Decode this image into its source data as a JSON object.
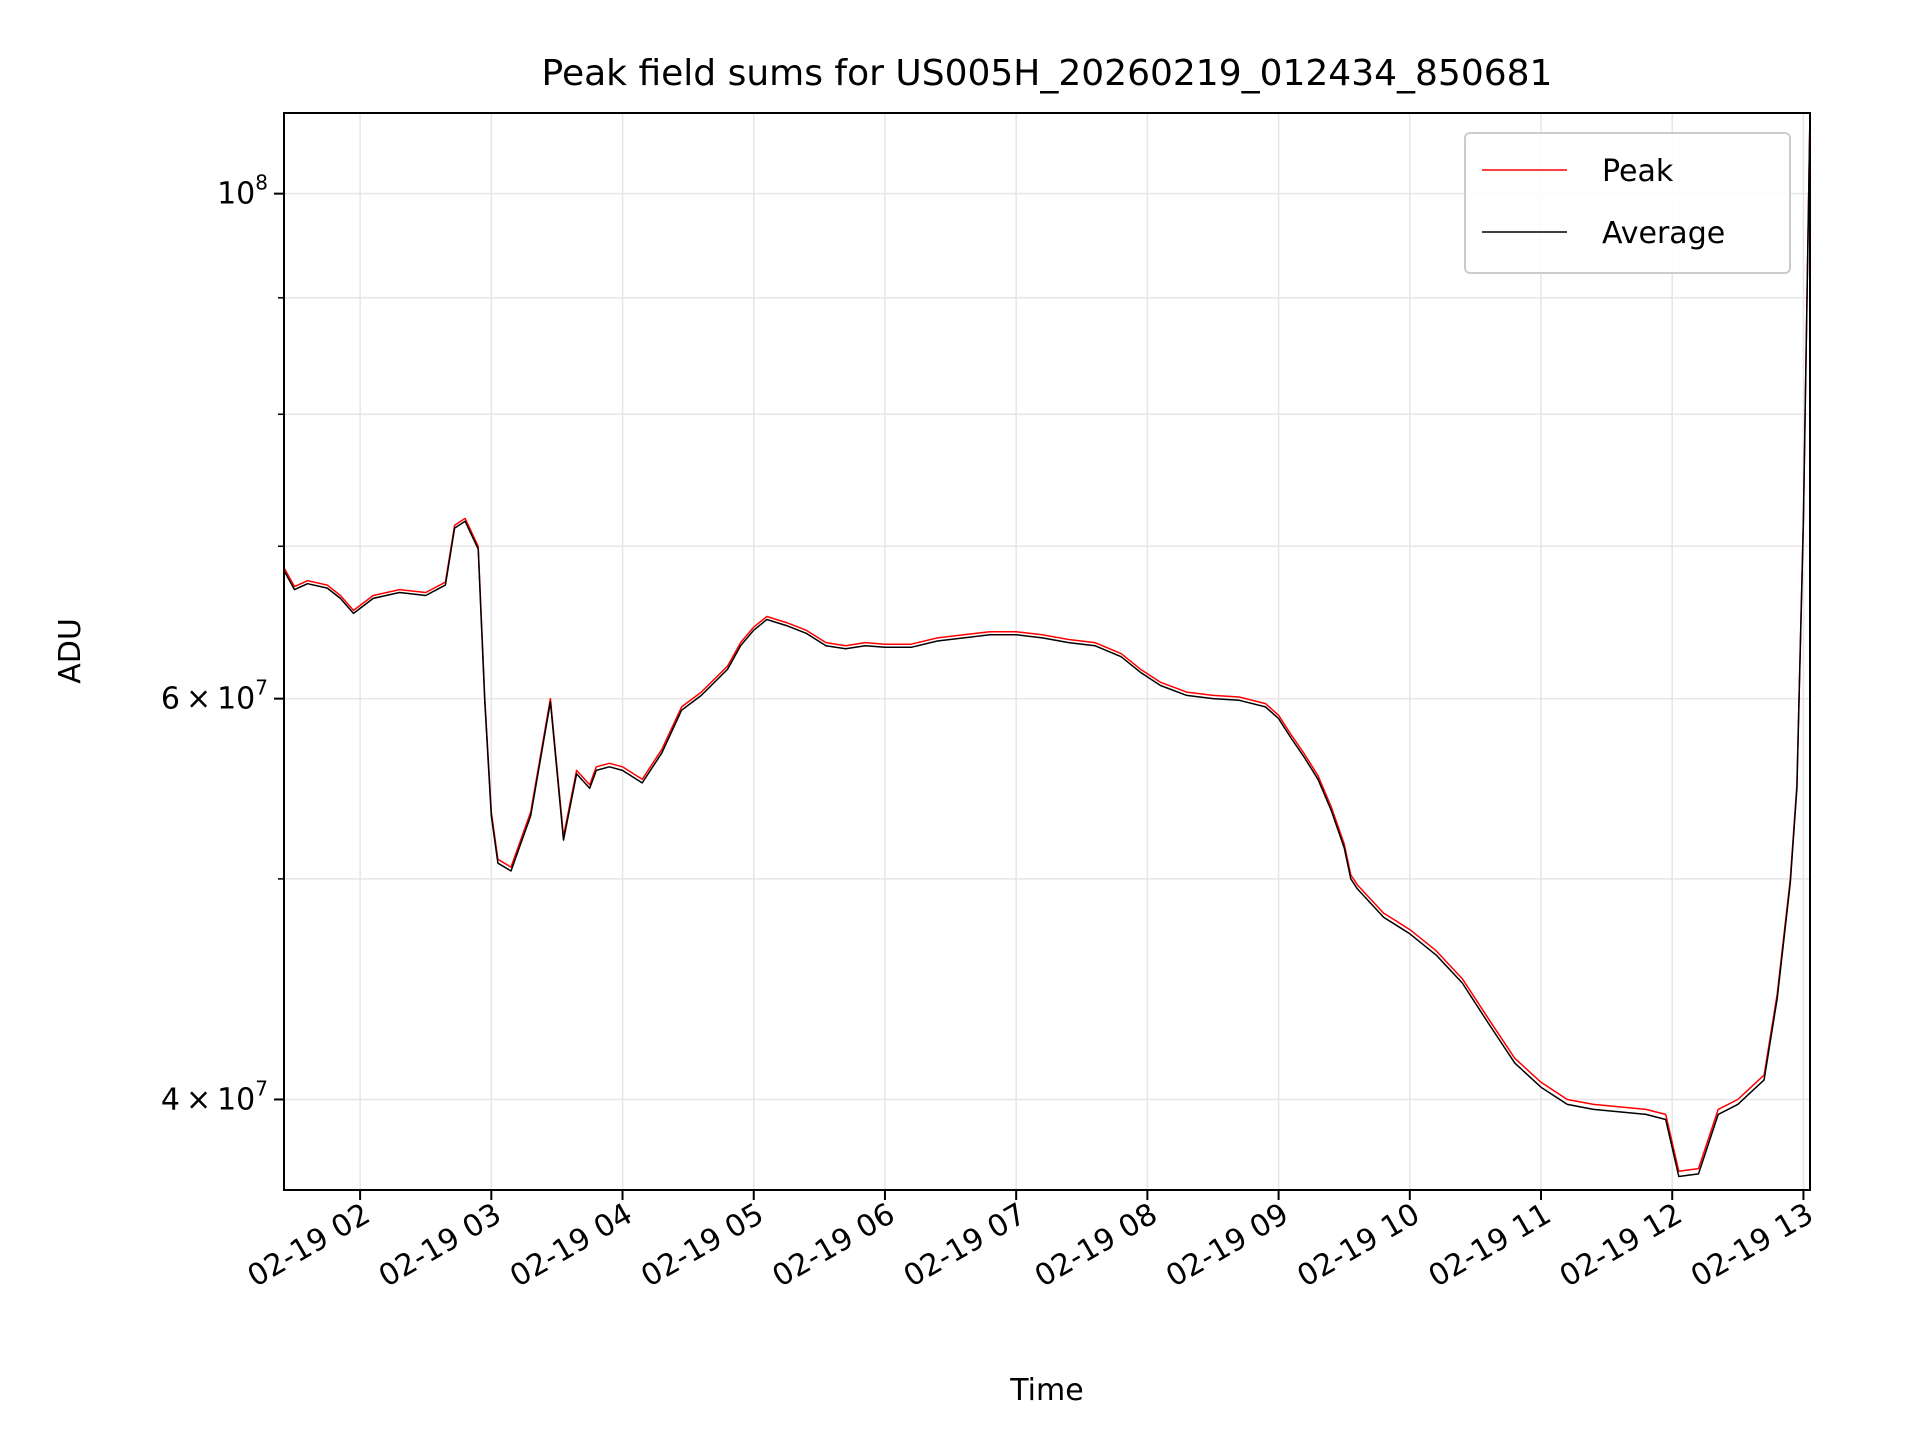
{
  "chart_data": {
    "type": "line",
    "title": "Peak field sums for US005H_20260219_012434_850681",
    "xlabel": "Time",
    "ylabel": "ADU",
    "yscale": "log",
    "ylim": [
      36500000,
      108500000
    ],
    "xlim": [
      1.42,
      13.05
    ],
    "x_unit": "hours after 02-19 00:00",
    "x_ticks": [
      {
        "value": 2,
        "label": "02-19 02"
      },
      {
        "value": 3,
        "label": "02-19 03"
      },
      {
        "value": 4,
        "label": "02-19 04"
      },
      {
        "value": 5,
        "label": "02-19 05"
      },
      {
        "value": 6,
        "label": "02-19 06"
      },
      {
        "value": 7,
        "label": "02-19 07"
      },
      {
        "value": 8,
        "label": "02-19 08"
      },
      {
        "value": 9,
        "label": "02-19 09"
      },
      {
        "value": 10,
        "label": "02-19 10"
      },
      {
        "value": 11,
        "label": "02-19 11"
      },
      {
        "value": 12,
        "label": "02-19 12"
      },
      {
        "value": 13,
        "label": "02-19 13"
      }
    ],
    "y_major_ticks": [
      {
        "value": 40000000,
        "mant": "4",
        "exp": "7"
      },
      {
        "value": 60000000,
        "mant": "6",
        "exp": "7"
      },
      {
        "value": 100000000,
        "mant": "",
        "exp": "8"
      }
    ],
    "y_minor_ticks": [
      50000000,
      70000000,
      80000000,
      90000000
    ],
    "grid": true,
    "legend_position": "top-right",
    "series": [
      {
        "name": "Peak",
        "color": "#ff0000",
        "x": [
          1.42,
          1.5,
          1.6,
          1.75,
          1.85,
          1.95,
          2.1,
          2.3,
          2.5,
          2.65,
          2.72,
          2.8,
          2.9,
          2.95,
          3.0,
          3.05,
          3.15,
          3.3,
          3.45,
          3.55,
          3.65,
          3.75,
          3.8,
          3.9,
          4.0,
          4.15,
          4.3,
          4.45,
          4.6,
          4.8,
          4.9,
          5.0,
          5.1,
          5.25,
          5.4,
          5.55,
          5.7,
          5.85,
          6.0,
          6.2,
          6.4,
          6.6,
          6.8,
          7.0,
          7.2,
          7.4,
          7.6,
          7.8,
          7.95,
          8.1,
          8.3,
          8.5,
          8.7,
          8.9,
          9.0,
          9.1,
          9.2,
          9.3,
          9.4,
          9.5,
          9.55,
          9.6,
          9.8,
          10.0,
          10.2,
          10.4,
          10.6,
          10.8,
          11.0,
          11.2,
          11.4,
          11.6,
          11.8,
          11.95,
          12.05,
          12.2,
          12.35,
          12.5,
          12.6,
          12.7,
          12.8,
          12.9,
          12.95,
          13.0,
          13.05
        ],
        "values": [
          68500000,
          67200000,
          67600000,
          67300000,
          66600000,
          65600000,
          66600000,
          67000000,
          66800000,
          67500000,
          71500000,
          72000000,
          70000000,
          60000000,
          53500000,
          51000000,
          50600000,
          53500000,
          60000000,
          52200000,
          55800000,
          55000000,
          56000000,
          56200000,
          56000000,
          55300000,
          57000000,
          59500000,
          60400000,
          62000000,
          63500000,
          64500000,
          65200000,
          64800000,
          64300000,
          63500000,
          63300000,
          63500000,
          63400000,
          63400000,
          63800000,
          64000000,
          64200000,
          64200000,
          64000000,
          63700000,
          63500000,
          62800000,
          61800000,
          61000000,
          60400000,
          60200000,
          60100000,
          59700000,
          59000000,
          57800000,
          56700000,
          55500000,
          53800000,
          51800000,
          50200000,
          49700000,
          48300000,
          47500000,
          46500000,
          45200000,
          43400000,
          41700000,
          40700000,
          40000000,
          39800000,
          39700000,
          39600000,
          39400000,
          37200000,
          37300000,
          39600000,
          40000000,
          40500000,
          41000000,
          44500000,
          50000000,
          55000000,
          72000000,
          108500000
        ]
      },
      {
        "name": "Average",
        "color": "#000000",
        "x": [
          1.42,
          1.5,
          1.6,
          1.75,
          1.85,
          1.95,
          2.1,
          2.3,
          2.5,
          2.65,
          2.72,
          2.8,
          2.9,
          2.95,
          3.0,
          3.05,
          3.15,
          3.3,
          3.45,
          3.55,
          3.65,
          3.75,
          3.8,
          3.9,
          4.0,
          4.15,
          4.3,
          4.45,
          4.6,
          4.8,
          4.9,
          5.0,
          5.1,
          5.25,
          5.4,
          5.55,
          5.7,
          5.85,
          6.0,
          6.2,
          6.4,
          6.6,
          6.8,
          7.0,
          7.2,
          7.4,
          7.6,
          7.8,
          7.95,
          8.1,
          8.3,
          8.5,
          8.7,
          8.9,
          9.0,
          9.1,
          9.2,
          9.3,
          9.4,
          9.5,
          9.55,
          9.6,
          9.8,
          10.0,
          10.2,
          10.4,
          10.6,
          10.8,
          11.0,
          11.2,
          11.4,
          11.6,
          11.8,
          11.95,
          12.05,
          12.2,
          12.35,
          12.5,
          12.6,
          12.7,
          12.8,
          12.9,
          12.95,
          13.0,
          13.05
        ],
        "values": [
          68300000,
          67000000,
          67400000,
          67100000,
          66400000,
          65400000,
          66400000,
          66800000,
          66600000,
          67300000,
          71300000,
          71800000,
          69800000,
          59800000,
          53300000,
          50800000,
          50400000,
          53300000,
          59800000,
          52000000,
          55600000,
          54800000,
          55800000,
          56000000,
          55800000,
          55100000,
          56800000,
          59300000,
          60200000,
          61800000,
          63300000,
          64300000,
          65000000,
          64600000,
          64100000,
          63300000,
          63100000,
          63300000,
          63200000,
          63200000,
          63600000,
          63800000,
          64000000,
          64000000,
          63800000,
          63500000,
          63300000,
          62600000,
          61600000,
          60800000,
          60200000,
          60000000,
          59900000,
          59500000,
          58800000,
          57600000,
          56500000,
          55300000,
          53600000,
          51600000,
          50000000,
          49500000,
          48100000,
          47300000,
          46300000,
          45000000,
          43200000,
          41500000,
          40500000,
          39800000,
          39600000,
          39500000,
          39400000,
          39200000,
          37000000,
          37100000,
          39400000,
          39800000,
          40300000,
          40800000,
          44300000,
          49800000,
          54800000,
          71800000,
          108500000
        ]
      }
    ]
  }
}
